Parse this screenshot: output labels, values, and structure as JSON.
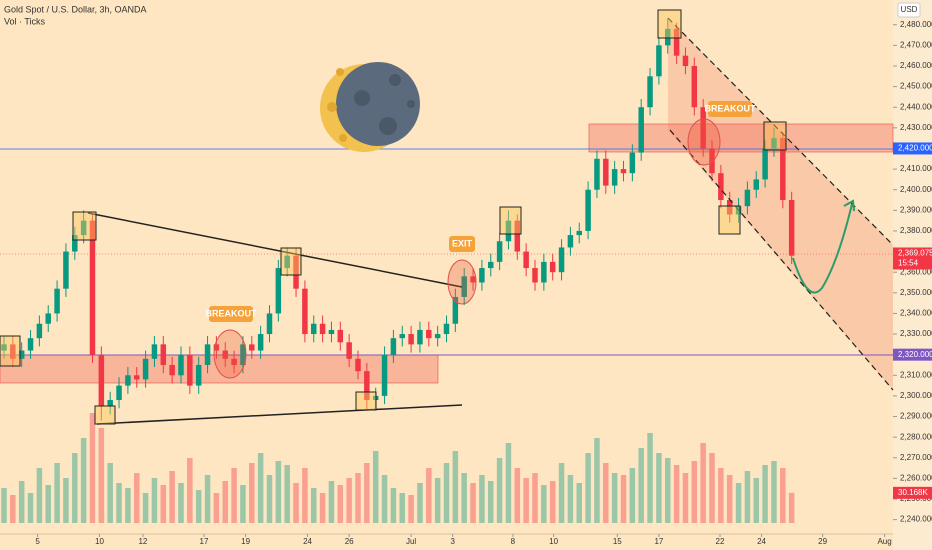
{
  "chart_data": {
    "type": "candlestick",
    "title": "Gold Spot / U.S. Dollar, 3h, OANDA",
    "subtitle": "Vol · Ticks",
    "currency": "USD",
    "annotations": [
      "BREAKOUT",
      "EXIT",
      "BREAKOUT"
    ],
    "up_color": "#089981",
    "down_color": "#f23645",
    "open": [
      2322,
      2325,
      2318,
      2322,
      2328,
      2335,
      2340,
      2352,
      2370,
      2378,
      2385,
      2320,
      2295,
      2298,
      2305,
      2310,
      2308,
      2318,
      2325,
      2315,
      2310,
      2320,
      2305,
      2315,
      2325,
      2322,
      2318,
      2315,
      2325,
      2322,
      2330,
      2340,
      2362,
      2368,
      2352,
      2330,
      2335,
      2330,
      2332,
      2326,
      2318,
      2312,
      2298,
      2300,
      2320,
      2328,
      2330,
      2325,
      2332,
      2328,
      2330,
      2335,
      2348,
      2358,
      2355,
      2362,
      2365,
      2375,
      2385,
      2370,
      2362,
      2355,
      2365,
      2360,
      2372,
      2378,
      2380,
      2400,
      2415,
      2402,
      2410,
      2408,
      2418,
      2440,
      2455,
      2470,
      2478,
      2465,
      2460,
      2440,
      2420,
      2408,
      2395,
      2388,
      2392,
      2400,
      2405,
      2420,
      2425,
      2395
    ],
    "high": [
      2329,
      2329,
      2326,
      2332,
      2339,
      2344,
      2356,
      2374,
      2382,
      2390,
      2388,
      2324,
      2302,
      2309,
      2314,
      2314,
      2322,
      2329,
      2329,
      2319,
      2324,
      2324,
      2319,
      2329,
      2329,
      2326,
      2322,
      2329,
      2329,
      2334,
      2344,
      2366,
      2372,
      2372,
      2356,
      2339,
      2339,
      2336,
      2336,
      2330,
      2322,
      2316,
      2304,
      2324,
      2332,
      2334,
      2334,
      2336,
      2336,
      2334,
      2339,
      2352,
      2362,
      2362,
      2366,
      2369,
      2379,
      2390,
      2388,
      2374,
      2366,
      2369,
      2369,
      2376,
      2382,
      2384,
      2404,
      2419,
      2419,
      2414,
      2414,
      2422,
      2444,
      2459,
      2474,
      2483,
      2481,
      2469,
      2464,
      2444,
      2424,
      2412,
      2399,
      2396,
      2404,
      2409,
      2424,
      2430,
      2428,
      2399
    ],
    "low": [
      2318,
      2314,
      2314,
      2318,
      2324,
      2331,
      2336,
      2348,
      2366,
      2374,
      2316,
      2288,
      2291,
      2294,
      2301,
      2304,
      2304,
      2314,
      2311,
      2306,
      2306,
      2301,
      2301,
      2311,
      2318,
      2314,
      2311,
      2311,
      2318,
      2318,
      2326,
      2336,
      2358,
      2348,
      2326,
      2326,
      2326,
      2326,
      2322,
      2314,
      2308,
      2293,
      2294,
      2296,
      2316,
      2324,
      2321,
      2321,
      2324,
      2324,
      2326,
      2331,
      2344,
      2351,
      2351,
      2358,
      2361,
      2371,
      2366,
      2358,
      2351,
      2351,
      2356,
      2356,
      2368,
      2374,
      2376,
      2396,
      2398,
      2398,
      2404,
      2404,
      2414,
      2436,
      2451,
      2466,
      2461,
      2456,
      2436,
      2416,
      2404,
      2391,
      2384,
      2384,
      2388,
      2396,
      2401,
      2416,
      2391,
      2364
    ],
    "close": [
      2325,
      2318,
      2322,
      2328,
      2335,
      2340,
      2352,
      2370,
      2378,
      2385,
      2320,
      2295,
      2298,
      2305,
      2310,
      2308,
      2318,
      2325,
      2315,
      2310,
      2320,
      2305,
      2315,
      2325,
      2322,
      2318,
      2315,
      2325,
      2322,
      2330,
      2340,
      2362,
      2368,
      2352,
      2330,
      2335,
      2330,
      2332,
      2326,
      2318,
      2312,
      2298,
      2300,
      2320,
      2328,
      2330,
      2325,
      2332,
      2328,
      2330,
      2335,
      2348,
      2358,
      2355,
      2362,
      2365,
      2375,
      2385,
      2370,
      2362,
      2355,
      2365,
      2360,
      2372,
      2378,
      2380,
      2400,
      2415,
      2402,
      2410,
      2408,
      2418,
      2440,
      2455,
      2470,
      2478,
      2465,
      2460,
      2440,
      2420,
      2408,
      2395,
      2388,
      2392,
      2400,
      2405,
      2420,
      2425,
      2395,
      2368
    ],
    "volume": [
      35,
      28,
      42,
      30,
      55,
      38,
      60,
      45,
      70,
      85,
      110,
      95,
      60,
      40,
      35,
      50,
      30,
      45,
      38,
      52,
      40,
      65,
      33,
      48,
      30,
      42,
      55,
      38,
      60,
      70,
      48,
      62,
      58,
      40,
      55,
      35,
      30,
      42,
      38,
      45,
      50,
      60,
      72,
      48,
      35,
      30,
      28,
      40,
      55,
      45,
      60,
      72,
      50,
      40,
      48,
      42,
      65,
      80,
      55,
      45,
      50,
      38,
      42,
      60,
      48,
      40,
      70,
      85,
      60,
      50,
      48,
      55,
      75,
      90,
      70,
      65,
      58,
      50,
      62,
      80,
      70,
      55,
      48,
      40,
      52,
      45,
      58,
      62,
      55,
      30.168
    ],
    "last_volume_label": "30.168K",
    "xlim": [
      -0.45,
      100.45
    ],
    "ylim": [
      2234,
      2492
    ],
    "xticks": [
      {
        "value": 3.8,
        "label": "5"
      },
      {
        "value": 10.8,
        "label": "10"
      },
      {
        "value": 15.7,
        "label": "12"
      },
      {
        "value": 22.6,
        "label": "17"
      },
      {
        "value": 27.3,
        "label": "19"
      },
      {
        "value": 34.3,
        "label": "24"
      },
      {
        "value": 39,
        "label": "26"
      },
      {
        "value": 46,
        "label": "Jul"
      },
      {
        "value": 50.7,
        "label": "3"
      },
      {
        "value": 57.5,
        "label": "8"
      },
      {
        "value": 62.1,
        "label": "10"
      },
      {
        "value": 69.3,
        "label": "15"
      },
      {
        "value": 74,
        "label": "17"
      },
      {
        "value": 80.9,
        "label": "22"
      },
      {
        "value": 85.6,
        "label": "24"
      },
      {
        "value": 92.5,
        "label": "29"
      },
      {
        "value": 99.5,
        "label": "Aug"
      }
    ],
    "yticks": [
      {
        "value": 2240,
        "label": "2,240.000"
      },
      {
        "value": 2250,
        "label": "2,250.000"
      },
      {
        "value": 2260,
        "label": "2,260.000"
      },
      {
        "value": 2270,
        "label": "2,270.000"
      },
      {
        "value": 2280,
        "label": "2,280.000"
      },
      {
        "value": 2290,
        "label": "2,290.000"
      },
      {
        "value": 2300,
        "label": "2,300.000"
      },
      {
        "value": 2310,
        "label": "2,310.000"
      },
      {
        "value": 2330,
        "label": "2,330.000"
      },
      {
        "value": 2340,
        "label": "2,340.000"
      },
      {
        "value": 2350,
        "label": "2,350.000"
      },
      {
        "value": 2360,
        "label": "2,360.000"
      },
      {
        "value": 2380,
        "label": "2,380.000"
      },
      {
        "value": 2390,
        "label": "2,390.000"
      },
      {
        "value": 2400,
        "label": "2,400.000"
      },
      {
        "value": 2410,
        "label": "2,410.000"
      },
      {
        "value": 2430,
        "label": "2,430.000"
      },
      {
        "value": 2440,
        "label": "2,440.000"
      },
      {
        "value": 2450,
        "label": "2,450.000"
      },
      {
        "value": 2460,
        "label": "2,460.000"
      },
      {
        "value": 2470,
        "label": "2,470.000"
      },
      {
        "value": 2480,
        "label": "2,480.000"
      }
    ],
    "price_labels": [
      {
        "value": 2420,
        "label": "2,420.000",
        "color": "#2962ff"
      },
      {
        "value": 2369.075,
        "label": "2,369.075",
        "sub": "15:54",
        "color": "#f23645"
      },
      {
        "value": 2320,
        "label": "2,320.000",
        "color": "#7e57c2"
      }
    ]
  }
}
